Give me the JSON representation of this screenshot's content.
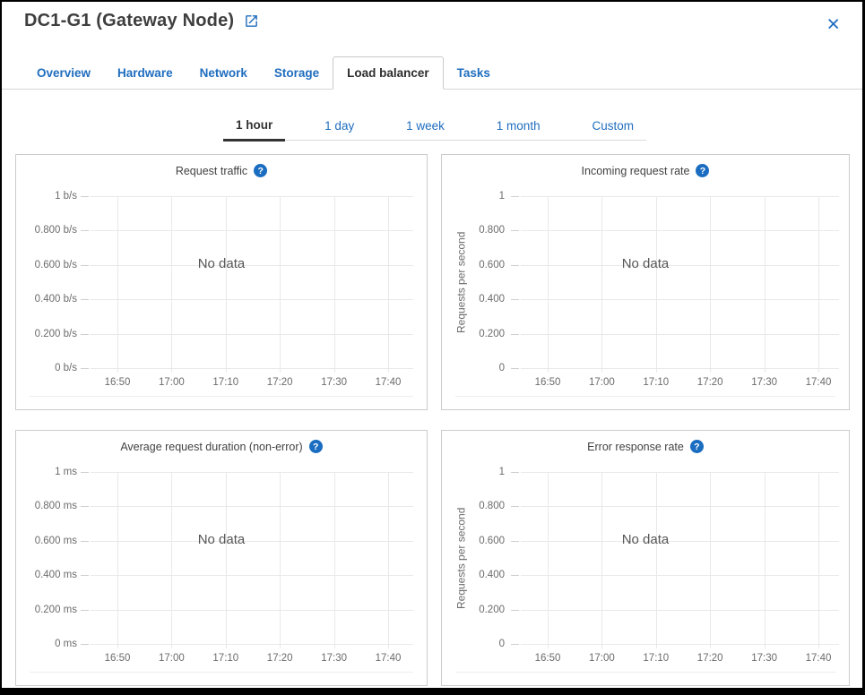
{
  "header": {
    "title": "DC1-G1 (Gateway Node)"
  },
  "icons": {
    "close": "×",
    "help": "?",
    "external_link": "open-in-new-arrow"
  },
  "colors": {
    "accent_blue": "#1f6dbf",
    "help_icon_blue": "#1a6dc0",
    "active_text": "#333333",
    "gridline": "#e9e9e9"
  },
  "tabs": [
    {
      "label": "Overview",
      "active": false
    },
    {
      "label": "Hardware",
      "active": false
    },
    {
      "label": "Network",
      "active": false
    },
    {
      "label": "Storage",
      "active": false
    },
    {
      "label": "Load balancer",
      "active": true
    },
    {
      "label": "Tasks",
      "active": false
    }
  ],
  "time_range": [
    {
      "label": "1 hour",
      "active": true
    },
    {
      "label": "1 day",
      "active": false
    },
    {
      "label": "1 week",
      "active": false
    },
    {
      "label": "1 month",
      "active": false
    },
    {
      "label": "Custom",
      "active": false
    }
  ],
  "chart_data": [
    {
      "type": "line",
      "title": "Request traffic",
      "no_data": "No data",
      "ylabel": "",
      "y_ticks": [
        "1 b/s",
        "0.800 b/s",
        "0.600 b/s",
        "0.400 b/s",
        "0.200 b/s",
        "0 b/s"
      ],
      "x_ticks": [
        "16:50",
        "17:00",
        "17:10",
        "17:20",
        "17:30",
        "17:40"
      ],
      "ylim": [
        0,
        1
      ],
      "grid": true,
      "series": []
    },
    {
      "type": "line",
      "title": "Incoming request rate",
      "no_data": "No data",
      "ylabel": "Requests per second",
      "y_ticks": [
        "1",
        "0.800",
        "0.600",
        "0.400",
        "0.200",
        "0"
      ],
      "x_ticks": [
        "16:50",
        "17:00",
        "17:10",
        "17:20",
        "17:30",
        "17:40"
      ],
      "ylim": [
        0,
        1
      ],
      "grid": true,
      "series": []
    },
    {
      "type": "line",
      "title": "Average request duration (non-error)",
      "no_data": "No data",
      "ylabel": "",
      "y_ticks": [
        "1 ms",
        "0.800 ms",
        "0.600 ms",
        "0.400 ms",
        "0.200 ms",
        "0 ms"
      ],
      "x_ticks": [
        "16:50",
        "17:00",
        "17:10",
        "17:20",
        "17:30",
        "17:40"
      ],
      "ylim": [
        0,
        1
      ],
      "grid": true,
      "series": []
    },
    {
      "type": "line",
      "title": "Error response rate",
      "no_data": "No data",
      "ylabel": "Requests per second",
      "y_ticks": [
        "1",
        "0.800",
        "0.600",
        "0.400",
        "0.200",
        "0"
      ],
      "x_ticks": [
        "16:50",
        "17:00",
        "17:10",
        "17:20",
        "17:30",
        "17:40"
      ],
      "ylim": [
        0,
        1
      ],
      "grid": true,
      "series": []
    }
  ]
}
